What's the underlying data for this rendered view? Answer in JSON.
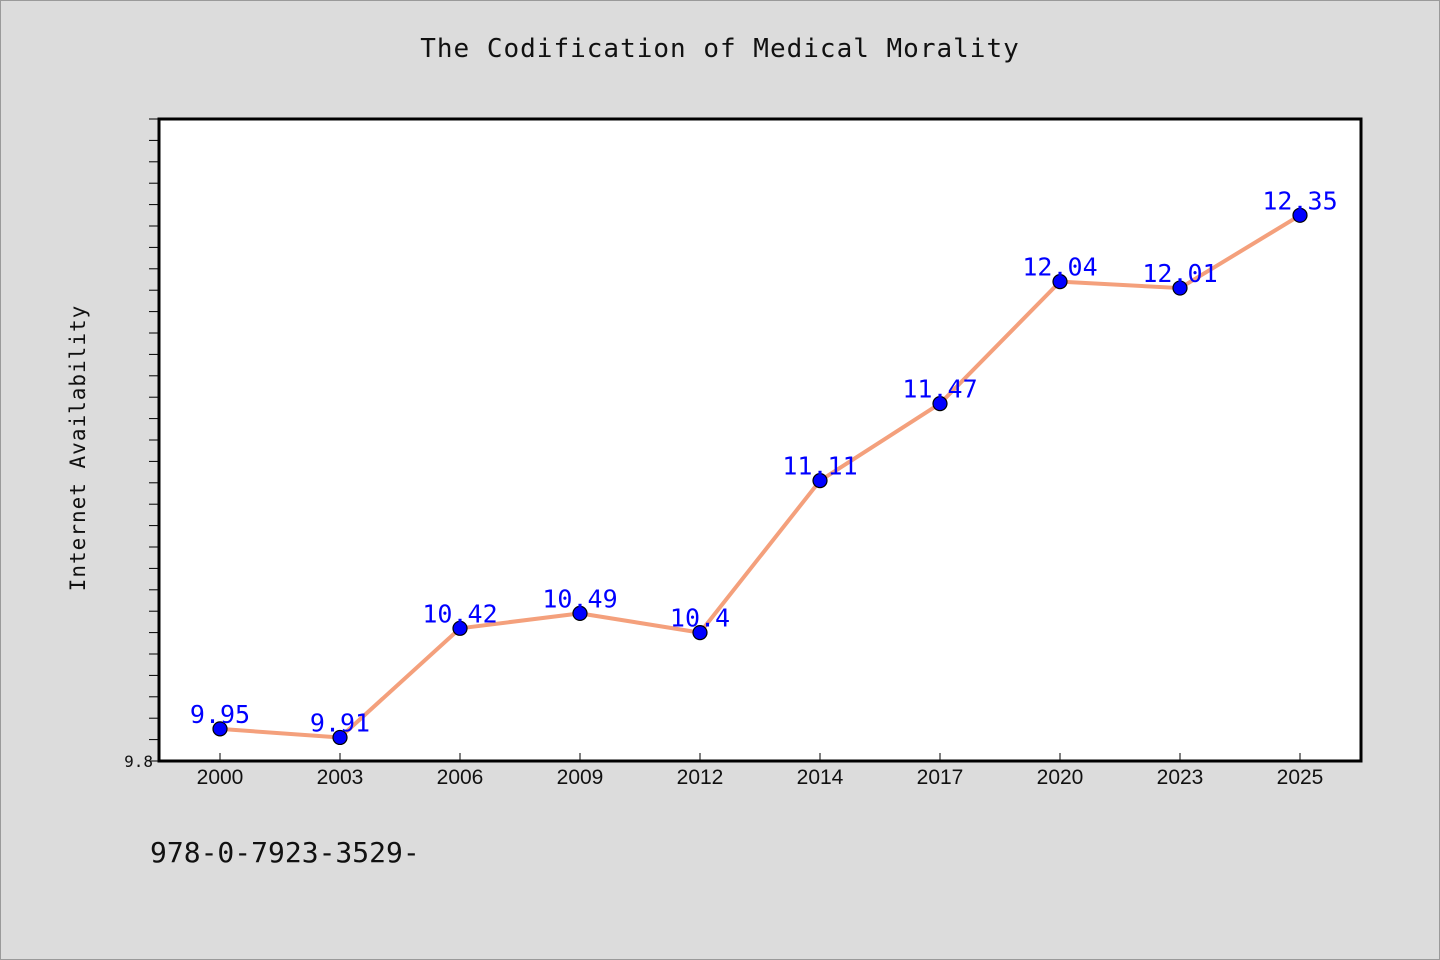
{
  "chart_data": {
    "type": "line",
    "title": "The Codification of Medical Morality",
    "ylabel": "Internet Availability",
    "xlabel": "",
    "categories": [
      "2000",
      "2003",
      "2006",
      "2009",
      "2012",
      "2014",
      "2017",
      "2020",
      "2023",
      "2025"
    ],
    "series": [
      {
        "values": [
          9.95,
          9.91,
          10.42,
          10.49,
          10.4,
          11.11,
          11.47,
          12.04,
          12.01,
          12.35
        ],
        "labels": [
          "9.95",
          "9.91",
          "10.42",
          "10.49",
          "10.4",
          "11.11",
          "11.47",
          "12.04",
          "12.01",
          "12.35"
        ],
        "line_color": "#f4a07c",
        "marker_color": "#0000ff",
        "label_color": "#0000ff"
      }
    ],
    "ylim": [
      9.8,
      12.8
    ],
    "ytick_labels": [
      "9.8"
    ],
    "grid": false,
    "legend": "none"
  },
  "footer": {
    "text": "978-0-7923-3529-"
  }
}
